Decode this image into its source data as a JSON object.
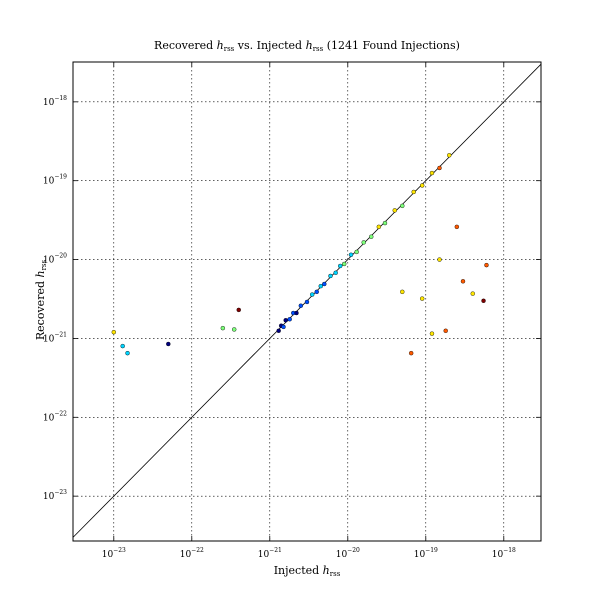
{
  "chart_data": {
    "type": "scatter",
    "title_pre": "Recovered ",
    "title_mid": " vs. Injected ",
    "title_post": " (1241 Found Injections)",
    "quantity": "h",
    "quantity_sub": "rss",
    "xlabel_pre": "Injected ",
    "ylabel_pre": "Recovered ",
    "xscale": "log",
    "yscale": "log",
    "xlim": [
      3e-24,
      3e-18
    ],
    "ylim": [
      2.7e-24,
      3.2e-18
    ],
    "x_tick_exponents": [
      -23,
      -22,
      -21,
      -20,
      -19,
      -18
    ],
    "y_tick_exponents": [
      -23,
      -22,
      -21,
      -20,
      -19,
      -18
    ],
    "tick_base": "10",
    "grid": true,
    "reference_line": "y = x",
    "color_map": [
      "#00007f",
      "#0050ff",
      "#00d4ff",
      "#7dff7a",
      "#ffe600",
      "#ff5a00",
      "#7f0000"
    ],
    "series": [
      {
        "x": [
          1.3e-21,
          1.4e-21,
          1.5e-21,
          1.6e-21,
          1.8e-21,
          2e-21,
          2.2e-21,
          2.5e-21,
          3e-21,
          3.5e-21,
          4e-21,
          4.5e-21,
          5e-21,
          6e-21,
          7e-21,
          8e-21,
          9e-21,
          1.1e-20,
          1.3e-20,
          1.6e-20,
          2e-20,
          2.5e-20,
          3e-20,
          4e-20,
          5e-20,
          7e-20,
          9e-20,
          1.2e-19,
          1.5e-19,
          2e-19
        ],
        "y": [
          1.25e-21,
          1.45e-21,
          1.4e-21,
          1.7e-21,
          1.75e-21,
          2.1e-21,
          2.1e-21,
          2.6e-21,
          2.9e-21,
          3.6e-21,
          3.9e-21,
          4.6e-21,
          4.9e-21,
          6.2e-21,
          6.8e-21,
          8.3e-21,
          8.8e-21,
          1.15e-20,
          1.25e-20,
          1.65e-20,
          1.95e-20,
          2.6e-20,
          2.9e-20,
          4.2e-20,
          4.8e-20,
          7.2e-20,
          8.7e-20,
          1.25e-19,
          1.45e-19,
          2.1e-19
        ],
        "c": [
          0,
          0,
          1,
          0,
          1,
          1,
          0,
          1,
          1,
          2,
          1,
          2,
          1,
          2,
          2,
          2,
          3,
          2,
          3,
          3,
          3,
          4,
          3,
          4,
          3,
          4,
          4,
          4,
          5,
          4
        ]
      }
    ],
    "scatter_outliers": {
      "x": [
        1e-23,
        1.3e-23,
        1.5e-23,
        5e-23,
        4e-22,
        2.5e-22,
        3.5e-22,
        6.5e-20,
        1.2e-19,
        1.8e-19,
        3e-19,
        4e-19,
        5.5e-19,
        5e-20,
        9e-20,
        2.5e-19,
        6e-19,
        1.5e-19
      ],
      "y": [
        1.2e-21,
        8e-22,
        6.5e-22,
        8.5e-22,
        2.3e-21,
        1.35e-21,
        1.3e-21,
        6.5e-22,
        1.15e-21,
        1.25e-21,
        5.3e-21,
        3.7e-21,
        3e-21,
        3.9e-21,
        3.2e-21,
        2.6e-20,
        8.5e-21,
        1e-20
      ],
      "c": [
        4,
        2,
        2,
        0,
        6,
        3,
        3,
        5,
        4,
        5,
        5,
        4,
        6,
        4,
        4,
        5,
        5,
        4
      ]
    }
  }
}
